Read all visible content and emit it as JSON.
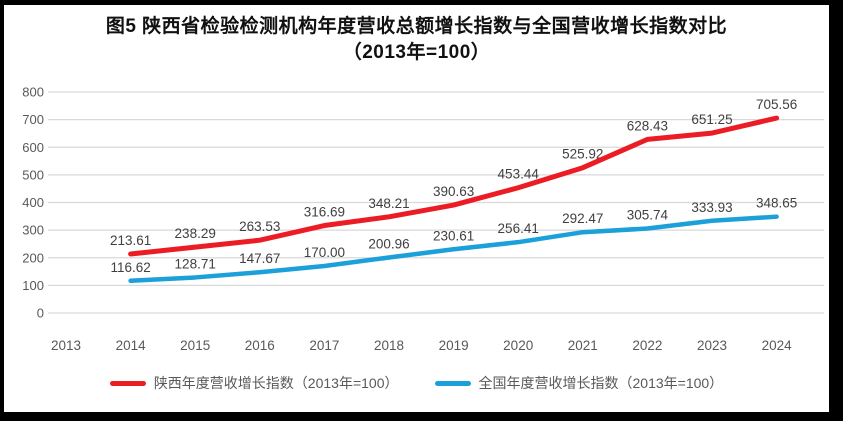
{
  "figure": {
    "title_line1": "图5  陕西省检验检测机构年度营收总额增长指数与全国营收增长指数对比",
    "title_line2": "（2013年=100）"
  },
  "chart_data": {
    "type": "line",
    "title": "图5 陕西省检验检测机构年度营收总额增长指数与全国营收增长指数对比（2013年=100）",
    "categories": [
      "2013",
      "2014",
      "2015",
      "2016",
      "2017",
      "2018",
      "2019",
      "2020",
      "2021",
      "2022",
      "2023",
      "2024"
    ],
    "series": [
      {
        "key": "shaanxi",
        "name": "陕西年度营收增长指数（2013年=100）",
        "color": "#EC1C24",
        "values": [
          null,
          213.61,
          238.29,
          263.53,
          316.69,
          348.21,
          390.63,
          453.44,
          525.92,
          628.43,
          651.25,
          705.56
        ]
      },
      {
        "key": "national",
        "name": "全国年度营收增长指数（2013年=100）",
        "color": "#1BA0DA",
        "values": [
          null,
          116.62,
          128.71,
          147.67,
          170.0,
          200.96,
          230.61,
          256.41,
          292.47,
          305.74,
          333.93,
          348.65
        ]
      }
    ],
    "ylim": [
      0,
      800
    ],
    "yticks": [
      0,
      100,
      200,
      300,
      400,
      500,
      600,
      700,
      800
    ],
    "grid": true,
    "legend_position": "bottom",
    "data_labels": true,
    "colors": {
      "grid": "#D9D9D9",
      "axis_text": "#595959",
      "data_label_text": "#404040",
      "title_text": "#111111"
    }
  }
}
